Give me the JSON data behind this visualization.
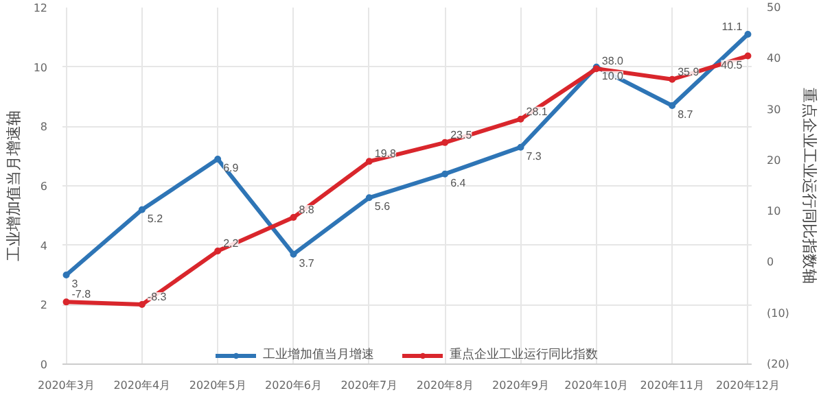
{
  "chart_data": {
    "type": "line",
    "categories": [
      "2020年3月",
      "2020年4月",
      "2020年5月",
      "2020年6月",
      "2020年7月",
      "2020年8月",
      "2020年9月",
      "2020年10月",
      "2020年11月",
      "2020年12月"
    ],
    "series": [
      {
        "name": "工业增加值当月增速",
        "color": "#2e75b6",
        "values": [
          3,
          5.2,
          6.9,
          3.7,
          5.6,
          6.4,
          7.3,
          10.0,
          8.7,
          11.1
        ],
        "value_labels": [
          "3",
          "5.2",
          "6.9",
          "3.7",
          "5.6",
          "6.4",
          "7.3",
          "10.0",
          "8.7",
          "11.1"
        ]
      },
      {
        "name": "重点企业工业运行同比指数",
        "color": "#d9262c",
        "axis": "y2",
        "values": [
          -7.8,
          -8.3,
          2.2,
          8.8,
          19.8,
          23.5,
          28.1,
          38.0,
          35.9,
          40.5
        ],
        "value_labels": [
          "-7.8",
          "-8.3",
          "2.2",
          "8.8",
          "19.8",
          "23.5",
          "28.1",
          "38.0",
          "35.9",
          "40.5"
        ]
      }
    ],
    "ylabel": "工业增加值当月增速轴",
    "y2label": "重点企业工业运行同比指数轴",
    "ylim": [
      0,
      12
    ],
    "yticks": [
      0,
      2,
      4,
      6,
      8,
      10,
      12
    ],
    "y2lim": [
      -20,
      50
    ],
    "y2ticks": [
      {
        "value": -20,
        "label": "(20)"
      },
      {
        "value": -10,
        "label": "(10)"
      },
      0,
      10,
      20,
      30,
      40,
      50
    ],
    "grid": true,
    "legend": "bottom",
    "marker": "circle",
    "line_style": "solid"
  }
}
